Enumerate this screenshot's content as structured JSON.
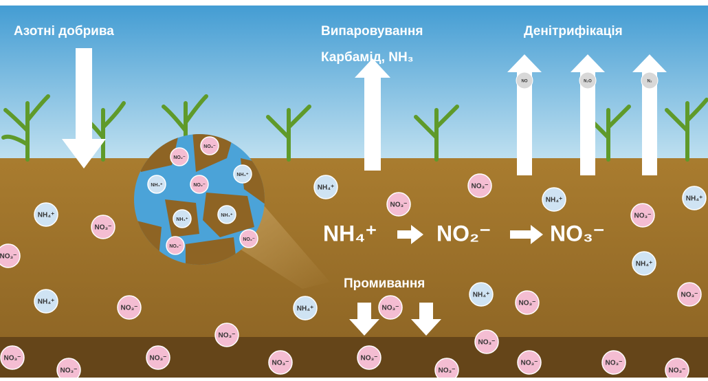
{
  "labels": {
    "fertilizer": "Азотні добрива",
    "volatilization": "Випаровування",
    "volatilization_sub": "Карбамід, NH₃",
    "denitrification": "Денітрифікація",
    "leaching": "Промивання"
  },
  "equation": [
    "NH₄⁺",
    "NO₂⁻",
    "NO₃⁻"
  ],
  "gases": [
    "NO",
    "N₂O",
    "N₂"
  ],
  "ions": [
    {
      "label": "NH₄⁺",
      "color": "#cfe3f3"
    },
    {
      "label": "NO₃⁻",
      "color": "#f4bdd2"
    },
    {
      "label": "NO₃⁻",
      "color": "#f4bdd2"
    },
    {
      "label": "NH₄⁺",
      "color": "#cfe3f3"
    },
    {
      "label": "NO₃⁻",
      "color": "#f4bdd2"
    },
    {
      "label": "NH₄⁺",
      "color": "#cfe3f3"
    },
    {
      "label": "NH₄⁺",
      "color": "#cfe3f3"
    },
    {
      "label": "NO₃⁻",
      "color": "#f4bdd2"
    },
    {
      "label": "NO₃⁻",
      "color": "#f4bdd2"
    },
    {
      "label": "NH₄⁺",
      "color": "#cfe3f3"
    },
    {
      "label": "NO₃⁻",
      "color": "#f4bdd2"
    },
    {
      "label": "NH₄⁺",
      "color": "#cfe3f3"
    },
    {
      "label": "NO₃⁻",
      "color": "#f4bdd2"
    },
    {
      "label": "NH₄⁺",
      "color": "#cfe3f3"
    },
    {
      "label": "NO₃⁻",
      "color": "#f4bdd2"
    },
    {
      "label": "NH₄⁺",
      "color": "#cfe3f3"
    },
    {
      "label": "NO₃⁻",
      "color": "#f4bdd2"
    },
    {
      "label": "NO₃⁻",
      "color": "#f4bdd2"
    },
    {
      "label": "NO₃⁻",
      "color": "#f4bdd2"
    },
    {
      "label": "NO₃⁻",
      "color": "#f4bdd2"
    },
    {
      "label": "NO₃⁻",
      "color": "#f4bdd2"
    },
    {
      "label": "NO₃⁻",
      "color": "#f4bdd2"
    },
    {
      "label": "NO₃⁻",
      "color": "#f4bdd2"
    },
    {
      "label": "NO₃⁻",
      "color": "#f4bdd2"
    },
    {
      "label": "NO₃⁻",
      "color": "#f4bdd2"
    },
    {
      "label": "NO₃⁻",
      "color": "#f4bdd2"
    },
    {
      "label": "NO₃⁻",
      "color": "#f4bdd2"
    },
    {
      "label": "NO₃⁻",
      "color": "#f4bdd2"
    }
  ],
  "magnifier_ions": [
    {
      "label": "NO₃⁻",
      "color": "#f4bdd2"
    },
    {
      "label": "NO₂⁻",
      "color": "#f4bdd2"
    },
    {
      "label": "NH₄⁺",
      "color": "#cfe3f3"
    },
    {
      "label": "NH₄⁺",
      "color": "#cfe3f3"
    },
    {
      "label": "NO₂⁻",
      "color": "#f4bdd2"
    },
    {
      "label": "NH₄⁺",
      "color": "#cfe3f3"
    },
    {
      "label": "NH₄⁺",
      "color": "#cfe3f3"
    },
    {
      "label": "NO₂⁻",
      "color": "#f4bdd2"
    },
    {
      "label": "NO₂⁻",
      "color": "#f4bdd2"
    }
  ]
}
